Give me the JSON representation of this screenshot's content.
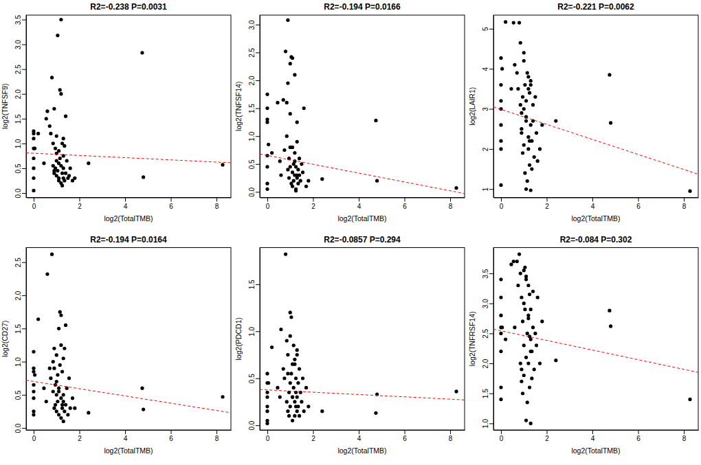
{
  "chart_data": [
    {
      "type": "scatter",
      "title": "R2=-0.238 P=0.0031",
      "x_label": "log2(TotalTMB)",
      "y_label": "log2(TNFSF9)",
      "xlim": [
        -0.33,
        8.63
      ],
      "xticks": [
        0,
        2,
        4,
        6,
        8
      ],
      "ylim": [
        -0.09,
        3.59
      ],
      "yticks": [
        {
          "value": 0,
          "label": "0.0"
        },
        0.5,
        {
          "value": 1,
          "label": "1.0"
        },
        1.5,
        {
          "value": 2,
          "label": "2.0"
        },
        2.5,
        {
          "value": 3,
          "label": "3.0"
        },
        3.5
      ],
      "series": [
        {
          "type": "scatter",
          "color": "#000000",
          "marker": "circle",
          "x": [
            0,
            0,
            0,
            0,
            0,
            0,
            0,
            0,
            0.2,
            0.45,
            0.55,
            0.6,
            0.7,
            0.75,
            0.8,
            0.85,
            0.85,
            0.9,
            0.9,
            0.95,
            0.95,
            1.0,
            1.0,
            1.0,
            1.05,
            1.05,
            1.1,
            1.1,
            1.1,
            1.15,
            1.15,
            1.2,
            1.2,
            1.2,
            1.25,
            1.25,
            1.3,
            1.3,
            1.3,
            1.35,
            1.35,
            1.4,
            1.4,
            1.45,
            1.5,
            1.55,
            1.6,
            1.7,
            1.8,
            2.4,
            4.75,
            4.8,
            8.27,
            1.0,
            1.2,
            0.9,
            1.1,
            1.3,
            1.25,
            0.05
          ],
          "values": [
            1.25,
            1.2,
            1.1,
            0.9,
            0.7,
            0.5,
            0.3,
            0.05,
            1.2,
            0.6,
            1.5,
            1.65,
            1.35,
            1.2,
            2.33,
            1.0,
            0.55,
            0.4,
            1.7,
            0.9,
            0.5,
            0.35,
            0.8,
            1.15,
            3.18,
            0.45,
            0.6,
            0.25,
            0.3,
            2.08,
            0.7,
            3.5,
            0.2,
            0.55,
            1.0,
            0.4,
            0.75,
            0.3,
            0.5,
            0.95,
            0.25,
            1.55,
            0.4,
            0.65,
            0.3,
            0.35,
            0.5,
            0.25,
            0.3,
            0.6,
            2.83,
            0.32,
            0.57,
            0.65,
            2.0,
            0.45,
            0.85,
            1.1,
            0.15,
            0.9
          ]
        },
        {
          "type": "line",
          "color": "#ff0000",
          "line_style": "dashed",
          "x": [
            -0.33,
            8.63
          ],
          "values": [
            0.81,
            0.61
          ]
        }
      ]
    },
    {
      "type": "scatter",
      "title": "R2=-0.194 P=0.0166",
      "x_label": "log2(TotalTMB)",
      "y_label": "log2(TNFSF14)",
      "xlim": [
        -0.33,
        8.63
      ],
      "xticks": [
        0,
        2,
        4,
        6,
        8
      ],
      "ylim": [
        -0.1,
        3.17
      ],
      "yticks": [
        {
          "value": 0,
          "label": "0.0"
        },
        0.5,
        {
          "value": 1,
          "label": "1.0"
        },
        1.5,
        {
          "value": 2,
          "label": "2.0"
        },
        2.5,
        {
          "value": 3,
          "label": "3.0"
        }
      ],
      "series": [
        {
          "type": "scatter",
          "color": "#000000",
          "marker": "circle",
          "x": [
            0,
            0,
            0,
            0,
            0,
            0,
            0,
            0,
            0.2,
            0.45,
            0.55,
            0.6,
            0.7,
            0.75,
            0.8,
            0.85,
            0.85,
            0.9,
            0.9,
            0.95,
            0.95,
            1.0,
            1.0,
            1.0,
            1.05,
            1.05,
            1.1,
            1.1,
            1.1,
            1.15,
            1.15,
            1.2,
            1.2,
            1.2,
            1.25,
            1.25,
            1.3,
            1.3,
            1.3,
            1.35,
            1.35,
            1.4,
            1.4,
            1.45,
            1.5,
            1.55,
            1.6,
            1.7,
            1.8,
            2.4,
            4.75,
            4.8,
            8.27,
            1.0,
            1.2,
            0.9,
            1.1,
            1.3,
            1.25,
            0.05
          ],
          "values": [
            1.75,
            1.5,
            1.3,
            1.25,
            0.65,
            0.45,
            0.15,
            0.05,
            0.7,
            1.6,
            0.55,
            0.3,
            1.65,
            0.75,
            2.52,
            1.6,
            1.0,
            0.4,
            3.08,
            0.6,
            0.25,
            2.3,
            0.45,
            0.8,
            2.42,
            0.15,
            0.35,
            0.1,
            2.4,
            0.5,
            0.2,
            0.7,
            0.3,
            2.1,
            0.45,
            0.05,
            0.9,
            0.25,
            1.25,
            0.4,
            0.15,
            0.6,
            0.3,
            0.2,
            0.5,
            0.35,
            1.5,
            0.1,
            0.2,
            0.23,
            1.28,
            0.2,
            0.07,
            1.4,
            0.55,
            1.95,
            0.8,
            0.3,
            0.02,
            0.85
          ]
        },
        {
          "type": "line",
          "color": "#ff0000",
          "line_style": "dashed",
          "x": [
            -0.33,
            8.63
          ],
          "values": [
            0.68,
            -0.03
          ]
        }
      ]
    },
    {
      "type": "scatter",
      "title": "R2=-0.221 P=0.0062",
      "x_label": "log2(TotalTMB)",
      "y_label": "log2(LAIR1)",
      "xlim": [
        -0.33,
        8.63
      ],
      "xticks": [
        0,
        2,
        4,
        6,
        8
      ],
      "ylim": [
        0.79,
        5.34
      ],
      "yticks": [
        1,
        2,
        3,
        4,
        5
      ],
      "series": [
        {
          "type": "scatter",
          "color": "#000000",
          "marker": "circle",
          "x": [
            0,
            0,
            0,
            0,
            0,
            0,
            0,
            0,
            0.2,
            0.45,
            0.55,
            0.6,
            0.7,
            0.75,
            0.8,
            0.85,
            0.85,
            0.9,
            0.9,
            0.95,
            0.95,
            1.0,
            1.0,
            1.0,
            1.05,
            1.05,
            1.1,
            1.1,
            1.1,
            1.15,
            1.15,
            1.2,
            1.2,
            1.2,
            1.25,
            1.25,
            1.3,
            1.3,
            1.3,
            1.35,
            1.35,
            1.4,
            1.4,
            1.45,
            1.5,
            1.55,
            1.6,
            1.7,
            1.8,
            2.4,
            4.75,
            4.8,
            8.27,
            1.0,
            1.2,
            0.9,
            1.1,
            1.3,
            1.25,
            0.05
          ],
          "values": [
            4.27,
            3.6,
            3.2,
            3.0,
            2.6,
            2.2,
            2.0,
            1.1,
            5.17,
            3.5,
            5.15,
            4.1,
            3.9,
            3.5,
            5.15,
            4.65,
            3.1,
            2.4,
            2.5,
            3.3,
            1.9,
            4.2,
            3.0,
            2.1,
            3.6,
            1.4,
            2.8,
            3.2,
            2.7,
            3.9,
            1.2,
            2.3,
            3.5,
            2.0,
            1.6,
            3.4,
            2.6,
            0.97,
            3.7,
            2.2,
            1.5,
            3.1,
            2.7,
            1.8,
            3.3,
            2.4,
            1.7,
            2.0,
            2.6,
            2.7,
            3.85,
            2.65,
            0.95,
            4.4,
            3.8,
            2.9,
            1.0,
            3.6,
            2.2,
            4.0
          ]
        },
        {
          "type": "line",
          "color": "#ff0000",
          "line_style": "dashed",
          "x": [
            -0.33,
            8.63
          ],
          "values": [
            3.05,
            1.37
          ]
        }
      ]
    },
    {
      "type": "scatter",
      "title": "R2=-0.194 P=0.0164",
      "x_label": "log2(TotalTMB)",
      "y_label": "log2(CD27)",
      "xlim": [
        -0.33,
        8.63
      ],
      "xticks": [
        0,
        2,
        4,
        6,
        8
      ],
      "ylim": [
        -0.03,
        2.72
      ],
      "yticks": [
        {
          "value": 0,
          "label": "0.0"
        },
        0.5,
        {
          "value": 1,
          "label": "1.0"
        },
        1.5,
        {
          "value": 2,
          "label": "2.0"
        },
        2.5
      ],
      "series": [
        {
          "type": "scatter",
          "color": "#000000",
          "marker": "circle",
          "x": [
            0,
            0,
            0,
            0,
            0,
            0,
            0,
            0,
            0.2,
            0.45,
            0.55,
            0.6,
            0.7,
            0.75,
            0.8,
            0.85,
            0.85,
            0.9,
            0.9,
            0.95,
            0.95,
            1.0,
            1.0,
            1.0,
            1.05,
            1.05,
            1.1,
            1.1,
            1.1,
            1.15,
            1.15,
            1.2,
            1.2,
            1.2,
            1.25,
            1.25,
            1.3,
            1.3,
            1.3,
            1.35,
            1.35,
            1.4,
            1.4,
            1.45,
            1.5,
            1.55,
            1.6,
            1.7,
            1.8,
            2.4,
            4.75,
            4.8,
            8.27,
            1.0,
            1.2,
            0.9,
            1.1,
            1.3,
            1.25,
            0.05
          ],
          "values": [
            1.15,
            0.9,
            0.85,
            0.65,
            0.55,
            0.45,
            0.25,
            0.2,
            1.64,
            0.6,
            0.4,
            2.32,
            0.9,
            0.75,
            2.62,
            0.55,
            1.0,
            0.3,
            1.2,
            0.35,
            0.65,
            0.5,
            1.1,
            0.25,
            0.8,
            0.4,
            1.5,
            0.2,
            0.6,
            0.95,
            1.75,
            0.45,
            0.15,
            1.7,
            0.3,
            0.85,
            0.5,
            0.1,
            0.4,
            1.2,
            0.25,
            1.55,
            0.35,
            0.6,
            0.2,
            0.75,
            0.3,
            0.45,
            0.3,
            0.23,
            0.6,
            0.28,
            0.47,
            0.7,
            1.25,
            0.9,
            0.55,
            1.05,
            0.35,
            0.8
          ]
        },
        {
          "type": "line",
          "color": "#ff0000",
          "line_style": "dashed",
          "x": [
            -0.33,
            8.63
          ],
          "values": [
            0.72,
            0.23
          ]
        }
      ]
    },
    {
      "type": "scatter",
      "title": "R2=-0.0857 P=0.294",
      "x_label": "log2(TotalTMB)",
      "y_label": "log2(PDCD1)",
      "xlim": [
        -0.33,
        8.63
      ],
      "xticks": [
        0,
        2,
        4,
        6,
        8
      ],
      "ylim": [
        -0.05,
        1.89
      ],
      "yticks": [
        {
          "value": 0,
          "label": "0.0"
        },
        0.5,
        {
          "value": 1,
          "label": "1.0"
        },
        1.5
      ],
      "series": [
        {
          "type": "scatter",
          "color": "#000000",
          "marker": "circle",
          "x": [
            0,
            0,
            0,
            0,
            0,
            0,
            0,
            0,
            0.2,
            0.45,
            0.55,
            0.6,
            0.7,
            0.75,
            0.8,
            0.85,
            0.85,
            0.9,
            0.9,
            0.95,
            0.95,
            1.0,
            1.0,
            1.0,
            1.05,
            1.05,
            1.1,
            1.1,
            1.1,
            1.15,
            1.15,
            1.2,
            1.2,
            1.2,
            1.25,
            1.25,
            1.3,
            1.3,
            1.3,
            1.35,
            1.35,
            1.4,
            1.4,
            1.45,
            1.5,
            1.55,
            1.6,
            1.7,
            1.8,
            2.4,
            4.75,
            4.8,
            8.27,
            1.0,
            1.2,
            0.9,
            1.1,
            1.3,
            1.25,
            0.05
          ],
          "values": [
            0.55,
            0.45,
            0.35,
            0.3,
            0.2,
            0.15,
            0.05,
            0.02,
            0.83,
            0.4,
            0.3,
            1.02,
            0.6,
            0.5,
            1.82,
            0.9,
            0.25,
            0.15,
            0.75,
            0.35,
            0.1,
            1.2,
            0.45,
            0.2,
            1.15,
            0.55,
            0.3,
            0.05,
            0.65,
            0.85,
            0.4,
            0.25,
            0.7,
            0.1,
            0.5,
            0.35,
            0.8,
            0.15,
            0.3,
            0.45,
            0.2,
            0.6,
            0.1,
            0.35,
            0.25,
            0.5,
            0.15,
            0.4,
            0.2,
            0.15,
            0.13,
            0.33,
            0.36,
            0.95,
            0.65,
            0.55,
            0.3,
            0.75,
            0.2,
            0.45
          ]
        },
        {
          "type": "line",
          "color": "#ff0000",
          "line_style": "dashed",
          "x": [
            -0.33,
            8.63
          ],
          "values": [
            0.38,
            0.27
          ]
        }
      ]
    },
    {
      "type": "scatter",
      "title": "R2=-0.084 P=0.302",
      "x_label": "log2(TotalTMB)",
      "y_label": "log2(TNFRSF14)",
      "xlim": [
        -0.33,
        8.63
      ],
      "xticks": [
        0,
        2,
        4,
        6,
        8
      ],
      "ylim": [
        0.89,
        3.93
      ],
      "yticks": [
        {
          "value": 1,
          "label": "1.0"
        },
        1.5,
        {
          "value": 2,
          "label": "2.0"
        },
        2.5,
        {
          "value": 3,
          "label": "3.0"
        },
        3.5
      ],
      "series": [
        {
          "type": "scatter",
          "color": "#000000",
          "marker": "circle",
          "x": [
            0,
            0,
            0,
            0,
            0,
            0,
            0,
            0,
            0.2,
            0.45,
            0.55,
            0.6,
            0.7,
            0.75,
            0.8,
            0.85,
            0.85,
            0.9,
            0.9,
            0.95,
            0.95,
            1.0,
            1.0,
            1.0,
            1.05,
            1.05,
            1.1,
            1.1,
            1.1,
            1.15,
            1.15,
            1.2,
            1.2,
            1.2,
            1.25,
            1.25,
            1.3,
            1.3,
            1.3,
            1.35,
            1.35,
            1.4,
            1.4,
            1.45,
            1.5,
            1.55,
            1.6,
            1.7,
            1.8,
            2.4,
            4.75,
            4.8,
            8.27,
            1.0,
            1.2,
            0.9,
            1.1,
            1.3,
            1.25,
            0.05
          ],
          "values": [
            3.4,
            3.1,
            2.8,
            2.6,
            2.5,
            2.2,
            1.6,
            1.4,
            2.4,
            3.65,
            3.7,
            2.6,
            3.7,
            3.3,
            3.82,
            3.5,
            2.0,
            1.7,
            3.1,
            2.7,
            1.5,
            3.55,
            2.3,
            1.8,
            3.6,
            2.9,
            2.1,
            1.05,
            3.45,
            2.5,
            1.35,
            3.3,
            2.0,
            2.8,
            1.6,
            3.15,
            2.4,
            1.0,
            2.9,
            2.2,
            1.75,
            3.2,
            2.6,
            1.9,
            2.5,
            2.3,
            3.1,
            2.0,
            2.7,
            2.05,
            2.88,
            2.62,
            1.4,
            3.0,
            2.75,
            1.9,
            3.4,
            2.2,
            2.45,
            2.6
          ]
        },
        {
          "type": "line",
          "color": "#ff0000",
          "line_style": "dashed",
          "x": [
            -0.33,
            8.63
          ],
          "values": [
            2.57,
            1.85
          ]
        }
      ]
    }
  ]
}
